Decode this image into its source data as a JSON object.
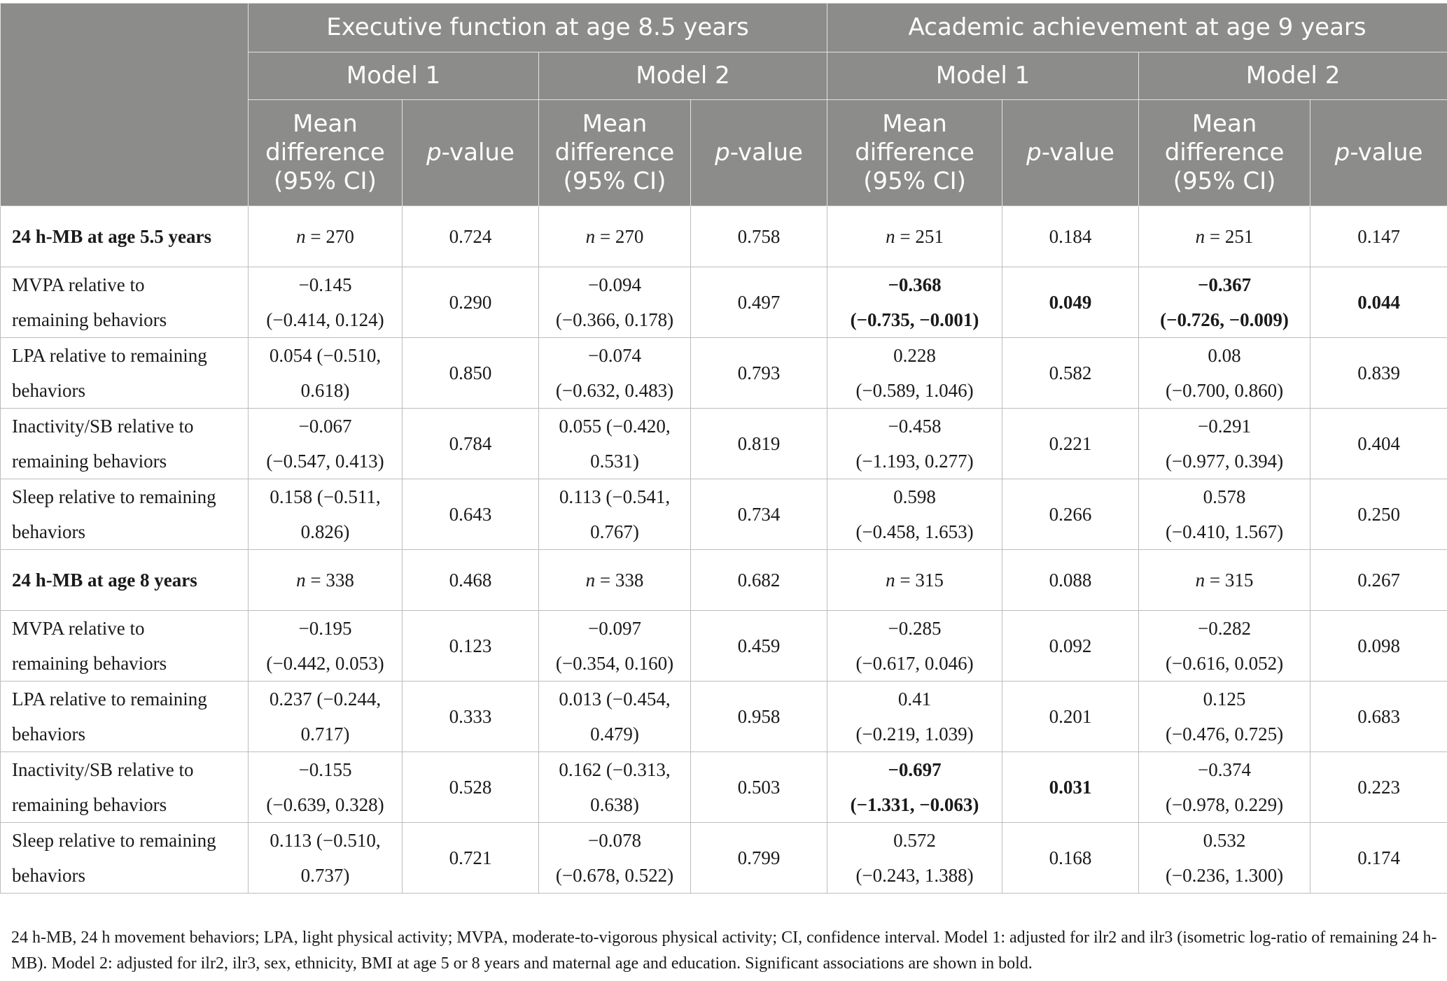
{
  "header": {
    "group_ef": "Executive function at age 8.5 years",
    "group_aa": "Academic achievement at age 9 years",
    "model1": "Model 1",
    "model2": "Model 2",
    "mean_diff_line1": "Mean",
    "mean_diff_line2": "difference",
    "mean_diff_line3": "(95% CI)",
    "p_italic": "p",
    "p_rest": "-value"
  },
  "rows": [
    {
      "label": "24 h-MB at age 5.5 years",
      "section": true,
      "cells": [
        {
          "n": "n",
          "v": " = 270"
        },
        {
          "v": "0.724"
        },
        {
          "n": "n",
          "v": " = 270"
        },
        {
          "v": "0.758"
        },
        {
          "n": "n",
          "v": " = 251"
        },
        {
          "v": "0.184"
        },
        {
          "n": "n",
          "v": " = 251"
        },
        {
          "v": "0.147"
        }
      ]
    },
    {
      "label": "MVPA relative to remaining behaviors",
      "section": false,
      "cells": [
        {
          "l1": "−0.145",
          "l2": "(−0.414, 0.124)"
        },
        {
          "v": "0.290"
        },
        {
          "l1": "−0.094",
          "l2": "(−0.366, 0.178)"
        },
        {
          "v": "0.497"
        },
        {
          "l1": "−0.368",
          "l2": "(−0.735, −0.001)",
          "bold": true
        },
        {
          "v": "0.049",
          "bold": true
        },
        {
          "l1": "−0.367",
          "l2": "(−0.726, −0.009)",
          "bold": true
        },
        {
          "v": "0.044",
          "bold": true
        }
      ]
    },
    {
      "label": "LPA relative to remaining behaviors",
      "section": false,
      "cells": [
        {
          "l1": "0.054 (−0.510,",
          "l2": "0.618)"
        },
        {
          "v": "0.850"
        },
        {
          "l1": "−0.074",
          "l2": "(−0.632, 0.483)"
        },
        {
          "v": "0.793"
        },
        {
          "l1": "0.228",
          "l2": "(−0.589, 1.046)"
        },
        {
          "v": "0.582"
        },
        {
          "l1": "0.08",
          "l2": "(−0.700, 0.860)"
        },
        {
          "v": "0.839"
        }
      ]
    },
    {
      "label": "Inactivity/SB relative to remaining behaviors",
      "section": false,
      "cells": [
        {
          "l1": "−0.067",
          "l2": "(−0.547, 0.413)"
        },
        {
          "v": "0.784"
        },
        {
          "l1": "0.055 (−0.420,",
          "l2": "0.531)"
        },
        {
          "v": "0.819"
        },
        {
          "l1": "−0.458",
          "l2": "(−1.193, 0.277)"
        },
        {
          "v": "0.221"
        },
        {
          "l1": "−0.291",
          "l2": "(−0.977, 0.394)"
        },
        {
          "v": "0.404"
        }
      ]
    },
    {
      "label": "Sleep relative to remaining behaviors",
      "section": false,
      "cells": [
        {
          "l1": "0.158 (−0.511,",
          "l2": "0.826)"
        },
        {
          "v": "0.643"
        },
        {
          "l1": "0.113 (−0.541,",
          "l2": "0.767)"
        },
        {
          "v": "0.734"
        },
        {
          "l1": "0.598",
          "l2": "(−0.458, 1.653)"
        },
        {
          "v": "0.266"
        },
        {
          "l1": "0.578",
          "l2": "(−0.410, 1.567)"
        },
        {
          "v": "0.250"
        }
      ]
    },
    {
      "label": "24 h-MB at age 8 years",
      "section": true,
      "cells": [
        {
          "n": "n",
          "v": " = 338"
        },
        {
          "v": "0.468"
        },
        {
          "n": "n",
          "v": " = 338"
        },
        {
          "v": "0.682"
        },
        {
          "n": "n",
          "v": " = 315"
        },
        {
          "v": "0.088"
        },
        {
          "n": "n",
          "v": " = 315"
        },
        {
          "v": "0.267"
        }
      ]
    },
    {
      "label": "MVPA relative to remaining behaviors",
      "section": false,
      "cells": [
        {
          "l1": "−0.195",
          "l2": "(−0.442, 0.053)"
        },
        {
          "v": "0.123"
        },
        {
          "l1": "−0.097",
          "l2": "(−0.354, 0.160)"
        },
        {
          "v": "0.459"
        },
        {
          "l1": "−0.285",
          "l2": "(−0.617, 0.046)"
        },
        {
          "v": "0.092"
        },
        {
          "l1": "−0.282",
          "l2": "(−0.616, 0.052)"
        },
        {
          "v": "0.098"
        }
      ]
    },
    {
      "label": "LPA relative to remaining behaviors",
      "section": false,
      "cells": [
        {
          "l1": "0.237 (−0.244,",
          "l2": "0.717)"
        },
        {
          "v": "0.333"
        },
        {
          "l1": "0.013 (−0.454,",
          "l2": "0.479)"
        },
        {
          "v": "0.958"
        },
        {
          "l1": "0.41",
          "l2": "(−0.219, 1.039)"
        },
        {
          "v": "0.201"
        },
        {
          "l1": "0.125",
          "l2": "(−0.476, 0.725)"
        },
        {
          "v": "0.683"
        }
      ]
    },
    {
      "label": "Inactivity/SB relative to remaining behaviors",
      "section": false,
      "cells": [
        {
          "l1": "−0.155",
          "l2": "(−0.639, 0.328)"
        },
        {
          "v": "0.528"
        },
        {
          "l1": "0.162 (−0.313,",
          "l2": "0.638)"
        },
        {
          "v": "0.503"
        },
        {
          "l1": "−0.697",
          "l2": "(−1.331, −0.063)",
          "bold": true
        },
        {
          "v": "0.031",
          "bold": true
        },
        {
          "l1": "−0.374",
          "l2": "(−0.978, 0.229)"
        },
        {
          "v": "0.223"
        }
      ]
    },
    {
      "label": "Sleep relative to remaining behaviors",
      "section": false,
      "cells": [
        {
          "l1": "0.113 (−0.510,",
          "l2": "0.737)"
        },
        {
          "v": "0.721"
        },
        {
          "l1": "−0.078",
          "l2": "(−0.678, 0.522)"
        },
        {
          "v": "0.799"
        },
        {
          "l1": "0.572",
          "l2": "(−0.243, 1.388)"
        },
        {
          "v": "0.168"
        },
        {
          "l1": "0.532",
          "l2": "(−0.236, 1.300)"
        },
        {
          "v": "0.174"
        }
      ]
    }
  ],
  "footnote": "24 h-MB, 24 h movement behaviors; LPA, light physical activity; MVPA, moderate-to-vigorous physical activity; CI, confidence interval. Model 1: adjusted for ilr2 and ilr3 (isometric log-ratio of remaining 24 h-MB). Model 2: adjusted for ilr2, ilr3, sex, ethnicity, BMI at age 5 or 8 years and maternal age and education. Significant associations are shown in bold."
}
